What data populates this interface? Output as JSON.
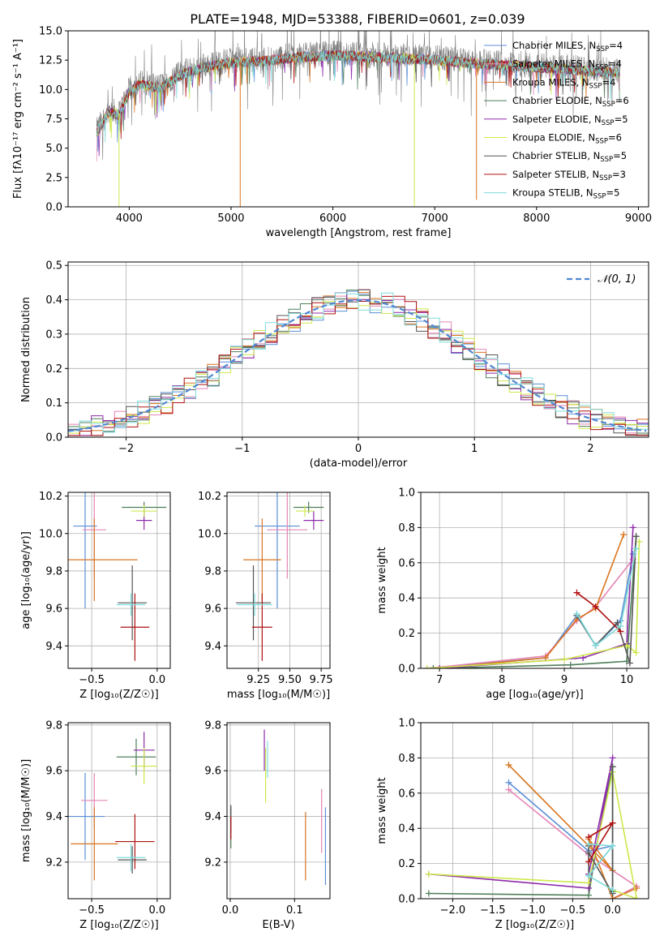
{
  "figure": {
    "title": "PLATE=1948, MJD=53388, FIBERID=0601, z=0.039",
    "series_colors": [
      "#5a8fd6",
      "#e685b5",
      "#d97520",
      "#4f7f5a",
      "#8e2bab",
      "#cde84a",
      "#555555",
      "#b01010",
      "#7fdbdb"
    ]
  },
  "chart_data": [
    {
      "id": "spectrum",
      "type": "line",
      "title": "PLATE=1948, MJD=53388, FIBERID=0601, z=0.039",
      "xlabel": "wavelength [Angstrom, rest frame]",
      "ylabel": "Flux [fλ10⁻¹⁷ erg cm⁻² s⁻¹ A⁻¹]",
      "xlim": [
        3400,
        9100
      ],
      "ylim": [
        0,
        15
      ],
      "xticks": [
        4000,
        5000,
        6000,
        7000,
        8000,
        9000
      ],
      "yticks": [
        0.0,
        2.5,
        5.0,
        7.5,
        10.0,
        12.5,
        15.0
      ],
      "grid": false,
      "legend_position": "upper-right",
      "observed": {
        "color": "#808080",
        "x_range": [
          3680,
          8820
        ]
      },
      "continuum_model": {
        "x": [
          3680,
          3800,
          3900,
          4000,
          4100,
          4200,
          4300,
          4500,
          4700,
          5000,
          5300,
          5600,
          6000,
          6300,
          6600,
          7000,
          7400,
          7800,
          8200,
          8500,
          8820
        ],
        "y": [
          6.5,
          8.3,
          8.0,
          10.0,
          10.6,
          10.5,
          10.3,
          11.4,
          12.0,
          12.5,
          12.6,
          12.9,
          13.1,
          13.0,
          12.9,
          12.7,
          12.4,
          12.2,
          12.0,
          11.8,
          11.6
        ]
      },
      "series": [
        {
          "name": "Chabrier MILES, N",
          "n_ssp": 4
        },
        {
          "name": "Salpeter MILES, N",
          "n_ssp": 4
        },
        {
          "name": "Kroupa MILES, N",
          "n_ssp": 4
        },
        {
          "name": "Chabrier ELODIE, N",
          "n_ssp": 6
        },
        {
          "name": "Salpeter ELODIE, N",
          "n_ssp": 5
        },
        {
          "name": "Kroupa ELODIE, N",
          "n_ssp": 6
        },
        {
          "name": "Chabrier STELIB, N",
          "n_ssp": 5
        },
        {
          "name": "Salpeter STELIB, N",
          "n_ssp": 3
        },
        {
          "name": "Kroupa STELIB, N",
          "n_ssp": 5
        }
      ],
      "legend_subscript": "SSP",
      "spikes": [
        {
          "x": 5090,
          "y": 0.0,
          "series": 2
        },
        {
          "x": 6800,
          "y": 0.0,
          "series": 5
        },
        {
          "x": 7410,
          "y": 0.6,
          "series": 2
        },
        {
          "x": 3900,
          "y": 0.0,
          "series": 5
        }
      ]
    },
    {
      "id": "residuals",
      "type": "line",
      "xlabel": "(data-model)/error",
      "ylabel": "Normed distribution",
      "xlim": [
        -2.5,
        2.5
      ],
      "ylim": [
        0,
        0.51
      ],
      "xticks": [
        -2,
        -1,
        0,
        1,
        2
      ],
      "yticks": [
        0.0,
        0.1,
        0.2,
        0.3,
        0.4,
        0.5
      ],
      "grid": true,
      "legend": {
        "label": "𝒩(0, 1)",
        "position": "upper-right"
      },
      "bin_width": 0.1
    },
    {
      "id": "age-vs-Z",
      "type": "scatter",
      "xlabel": "Z [log₁₀(Z/Z☉)]",
      "ylabel": "age  [log₁₀(age/yr)]",
      "xlim": [
        -0.68,
        0.1
      ],
      "ylim": [
        9.28,
        10.22
      ],
      "xticks": [
        -0.5,
        0.0
      ],
      "yticks": [
        9.4,
        9.6,
        9.8,
        10.0,
        10.2
      ],
      "tick_labels_x": [
        "−0.5",
        "0.0"
      ],
      "tick_labels_y": [
        "9.4",
        "9.6",
        "9.8",
        "10.0",
        "10.2"
      ],
      "grid": true,
      "errorbars": [
        {
          "x": -0.55,
          "xerr": 0.09,
          "y": 10.04,
          "yerr": 0.44,
          "series": 0
        },
        {
          "x": -0.48,
          "xerr": 0.09,
          "y": 10.02,
          "yerr": 0.26,
          "series": 1
        },
        {
          "x": -0.48,
          "xerr": 0.33,
          "y": 9.86,
          "yerr": 0.22,
          "series": 2
        },
        {
          "x": -0.1,
          "xerr": 0.17,
          "y": 10.14,
          "yerr": 0.03,
          "series": 3
        },
        {
          "x": -0.1,
          "xerr": 0.06,
          "y": 10.07,
          "yerr": 0.05,
          "series": 4
        },
        {
          "x": -0.1,
          "xerr": 0.1,
          "y": 10.12,
          "yerr": 0.03,
          "series": 5
        },
        {
          "x": -0.19,
          "xerr": 0.11,
          "y": 9.63,
          "yerr": 0.2,
          "series": 6
        },
        {
          "x": -0.17,
          "xerr": 0.11,
          "y": 9.5,
          "yerr": 0.18,
          "series": 7
        },
        {
          "x": -0.2,
          "xerr": 0.11,
          "y": 9.62,
          "yerr": 0.06,
          "series": 8
        }
      ]
    },
    {
      "id": "age-vs-mass",
      "type": "scatter",
      "xlabel": "mass [log₁₀(M/M☉)]",
      "ylabel": "",
      "xlim": [
        9.0,
        9.82
      ],
      "ylim": [
        9.28,
        10.22
      ],
      "xticks": [
        9.25,
        9.5,
        9.75
      ],
      "tick_labels_x": [
        "9.25",
        "9.50",
        "9.75"
      ],
      "yticks": [
        9.4,
        9.6,
        9.8,
        10.0,
        10.2
      ],
      "tick_labels_y": [
        "9.4",
        "9.6",
        "9.8",
        "10.0",
        "10.2"
      ],
      "grid": true,
      "errorbars": [
        {
          "x": 9.4,
          "xerr": 0.18,
          "y": 10.04,
          "yerr": 0.44,
          "series": 0
        },
        {
          "x": 9.48,
          "xerr": 0.16,
          "y": 10.02,
          "yerr": 0.26,
          "series": 1
        },
        {
          "x": 9.28,
          "xerr": 0.15,
          "y": 9.86,
          "yerr": 0.22,
          "series": 2
        },
        {
          "x": 9.65,
          "xerr": 0.12,
          "y": 10.14,
          "yerr": 0.03,
          "series": 3
        },
        {
          "x": 9.69,
          "xerr": 0.08,
          "y": 10.07,
          "yerr": 0.05,
          "series": 4
        },
        {
          "x": 9.62,
          "xerr": 0.07,
          "y": 10.12,
          "yerr": 0.03,
          "series": 5
        },
        {
          "x": 9.21,
          "xerr": 0.14,
          "y": 9.63,
          "yerr": 0.2,
          "series": 6
        },
        {
          "x": 9.28,
          "xerr": 0.08,
          "y": 9.5,
          "yerr": 0.18,
          "series": 7
        },
        {
          "x": 9.22,
          "xerr": 0.14,
          "y": 9.62,
          "yerr": 0.06,
          "series": 8
        }
      ]
    },
    {
      "id": "weight-vs-age",
      "type": "line",
      "xlabel": "age  [log₁₀(age/yr)]",
      "ylabel": "mass weight",
      "xlim": [
        6.7,
        10.35
      ],
      "ylim": [
        0,
        1
      ],
      "xticks": [
        7,
        8,
        9,
        10
      ],
      "yticks": [
        0.0,
        0.2,
        0.4,
        0.6,
        0.8,
        1.0
      ],
      "tick_labels_y": [
        "0.0",
        "0.2",
        "0.4",
        "0.6",
        "0.8",
        "1.0"
      ],
      "grid": true,
      "series": [
        {
          "series": 0,
          "points": [
            [
              6.8,
              0.0
            ],
            [
              8.7,
              0.06
            ],
            [
              9.2,
              0.3
            ],
            [
              9.5,
              0.13
            ],
            [
              9.9,
              0.27
            ],
            [
              10.1,
              0.65
            ]
          ]
        },
        {
          "series": 1,
          "points": [
            [
              6.8,
              0.0
            ],
            [
              8.7,
              0.07
            ],
            [
              9.2,
              0.27
            ],
            [
              9.5,
              0.35
            ],
            [
              10.1,
              0.62
            ]
          ]
        },
        {
          "series": 2,
          "points": [
            [
              7.0,
              0.0
            ],
            [
              8.7,
              0.06
            ],
            [
              9.2,
              0.28
            ],
            [
              9.5,
              0.34
            ],
            [
              9.95,
              0.76
            ]
          ]
        },
        {
          "series": 3,
          "points": [
            [
              6.9,
              0.0
            ],
            [
              9.1,
              0.02
            ],
            [
              10.0,
              0.04
            ],
            [
              10.15,
              0.75
            ]
          ]
        },
        {
          "series": 4,
          "points": [
            [
              7.0,
              0.0
            ],
            [
              9.3,
              0.06
            ],
            [
              10.0,
              0.14
            ],
            [
              10.1,
              0.8
            ]
          ]
        },
        {
          "series": 5,
          "points": [
            [
              6.8,
              0.0
            ],
            [
              9.0,
              0.05
            ],
            [
              10.0,
              0.13
            ],
            [
              10.15,
              0.09
            ],
            [
              10.2,
              0.72
            ]
          ]
        },
        {
          "series": 6,
          "points": [
            [
              9.2,
              0.3
            ],
            [
              9.5,
              0.13
            ],
            [
              9.85,
              0.26
            ],
            [
              10.05,
              0.03
            ],
            [
              10.15,
              0.75
            ]
          ]
        },
        {
          "series": 7,
          "points": [
            [
              9.2,
              0.43
            ],
            [
              9.5,
              0.35
            ],
            [
              9.9,
              0.21
            ]
          ]
        },
        {
          "series": 8,
          "points": [
            [
              9.2,
              0.31
            ],
            [
              9.5,
              0.13
            ],
            [
              9.9,
              0.24
            ],
            [
              10.15,
              0.68
            ]
          ]
        }
      ]
    },
    {
      "id": "mass-vs-Z",
      "type": "scatter",
      "xlabel": "Z [log₁₀(Z/Z☉)]",
      "ylabel": "mass [log₁₀(M/M☉)]",
      "xlim": [
        -0.68,
        0.1
      ],
      "ylim": [
        9.04,
        9.81
      ],
      "xticks": [
        -0.5,
        0.0
      ],
      "tick_labels_x": [
        "−0.5",
        "0.0"
      ],
      "yticks": [
        9.2,
        9.4,
        9.6,
        9.8
      ],
      "tick_labels_y": [
        "9.2",
        "9.4",
        "9.6",
        "9.8"
      ],
      "grid": true,
      "errorbars": [
        {
          "x": -0.55,
          "xerr": 0.15,
          "y": 9.4,
          "yerr": 0.19,
          "series": 0
        },
        {
          "x": -0.48,
          "xerr": 0.1,
          "y": 9.47,
          "yerr": 0.12,
          "series": 1
        },
        {
          "x": -0.48,
          "xerr": 0.18,
          "y": 9.28,
          "yerr": 0.16,
          "series": 2
        },
        {
          "x": -0.16,
          "xerr": 0.15,
          "y": 9.66,
          "yerr": 0.08,
          "series": 3
        },
        {
          "x": -0.1,
          "xerr": 0.08,
          "y": 9.69,
          "yerr": 0.08,
          "series": 4
        },
        {
          "x": -0.1,
          "xerr": 0.1,
          "y": 9.62,
          "yerr": 0.08,
          "series": 5
        },
        {
          "x": -0.19,
          "xerr": 0.11,
          "y": 9.21,
          "yerr": 0.06,
          "series": 6
        },
        {
          "x": -0.17,
          "xerr": 0.15,
          "y": 9.29,
          "yerr": 0.12,
          "series": 7
        },
        {
          "x": -0.2,
          "xerr": 0.11,
          "y": 9.22,
          "yerr": 0.06,
          "series": 8
        }
      ]
    },
    {
      "id": "mass-vs-EBV",
      "type": "scatter",
      "xlabel": "E(B-V)",
      "ylabel": "",
      "xlim": [
        -0.005,
        0.155
      ],
      "ylim": [
        9.04,
        9.81
      ],
      "xticks": [
        0.0,
        0.1
      ],
      "tick_labels_x": [
        "0.0",
        "0.1"
      ],
      "yticks": [
        9.2,
        9.4,
        9.6,
        9.8
      ],
      "tick_labels_y": [
        "9.2",
        "9.4",
        "9.6",
        "9.8"
      ],
      "grid": true,
      "errorbars": [
        {
          "x": 0.148,
          "xerr": 0.0,
          "y": 9.27,
          "yerr": 0.17,
          "series": 0
        },
        {
          "x": 0.142,
          "xerr": 0.0,
          "y": 9.38,
          "yerr": 0.14,
          "series": 1
        },
        {
          "x": 0.117,
          "xerr": 0.0,
          "y": 9.27,
          "yerr": 0.15,
          "series": 2
        },
        {
          "x": 0.001,
          "xerr": 0.0,
          "y": 9.35,
          "yerr": 0.09,
          "series": 3
        },
        {
          "x": 0.053,
          "xerr": 0.0,
          "y": 9.69,
          "yerr": 0.09,
          "series": 4
        },
        {
          "x": 0.055,
          "xerr": 0.0,
          "y": 9.58,
          "yerr": 0.12,
          "series": 5
        },
        {
          "x": 0.001,
          "xerr": 0.0,
          "y": 9.39,
          "yerr": 0.06,
          "series": 6
        },
        {
          "x": 0.001,
          "xerr": 0.0,
          "y": 9.35,
          "yerr": 0.05,
          "series": 7
        },
        {
          "x": 0.058,
          "xerr": 0.0,
          "y": 9.65,
          "yerr": 0.08,
          "series": 8
        }
      ]
    },
    {
      "id": "weight-vs-Z",
      "type": "line",
      "xlabel": "Z [log₁₀(Z/Z☉)]",
      "ylabel": "mass weight",
      "xlim": [
        -2.4,
        0.45
      ],
      "ylim": [
        0,
        1
      ],
      "xticks": [
        -2.0,
        -1.5,
        -1.0,
        -0.5,
        0.0
      ],
      "tick_labels_x": [
        "−2.0",
        "−1.5",
        "−1.0",
        "−0.5",
        "0.0"
      ],
      "yticks": [
        0.0,
        0.2,
        0.4,
        0.6,
        0.8,
        1.0
      ],
      "tick_labels_y": [
        "0.0",
        "0.2",
        "0.4",
        "0.6",
        "0.8",
        "1.0"
      ],
      "grid": true,
      "series": [
        {
          "series": 0,
          "points": [
            [
              -1.3,
              0.66
            ],
            [
              -0.3,
              0.27
            ],
            [
              0.0,
              0.3
            ],
            [
              -0.3,
              0.13
            ]
          ]
        },
        {
          "series": 1,
          "points": [
            [
              -1.3,
              0.62
            ],
            [
              -0.3,
              0.25
            ],
            [
              0.3,
              0.07
            ],
            [
              0.0,
              0.0
            ]
          ]
        },
        {
          "series": 2,
          "points": [
            [
              -1.3,
              0.76
            ],
            [
              -0.3,
              0.3
            ],
            [
              0.0,
              0.16
            ],
            [
              -0.3,
              0.34
            ],
            [
              0.0,
              0.0
            ],
            [
              0.3,
              0.06
            ]
          ]
        },
        {
          "series": 3,
          "points": [
            [
              -2.3,
              0.03
            ],
            [
              -0.3,
              0.02
            ],
            [
              -0.2,
              0.3
            ],
            [
              0.0,
              0.75
            ],
            [
              0.0,
              0.04
            ]
          ]
        },
        {
          "series": 4,
          "points": [
            [
              -2.3,
              0.14
            ],
            [
              -0.3,
              0.06
            ],
            [
              -0.2,
              0.3
            ],
            [
              0.0,
              0.8
            ],
            [
              -0.3,
              0.14
            ]
          ]
        },
        {
          "series": 5,
          "points": [
            [
              -2.3,
              0.14
            ],
            [
              -0.3,
              0.09
            ],
            [
              0.0,
              0.72
            ],
            [
              0.3,
              0.0
            ],
            [
              0.0,
              0.05
            ]
          ]
        },
        {
          "series": 6,
          "points": [
            [
              -0.3,
              0.3
            ],
            [
              -0.3,
              0.13
            ],
            [
              -0.3,
              0.26
            ],
            [
              0.0,
              0.03
            ],
            [
              0.0,
              0.75
            ]
          ]
        },
        {
          "series": 7,
          "points": [
            [
              -0.3,
              0.35
            ],
            [
              0.0,
              0.43
            ],
            [
              -0.3,
              0.21
            ]
          ]
        },
        {
          "series": 8,
          "points": [
            [
              -0.3,
              0.31
            ],
            [
              0.0,
              0.3
            ],
            [
              -0.3,
              0.13
            ],
            [
              0.0,
              0.05
            ]
          ]
        }
      ]
    }
  ]
}
